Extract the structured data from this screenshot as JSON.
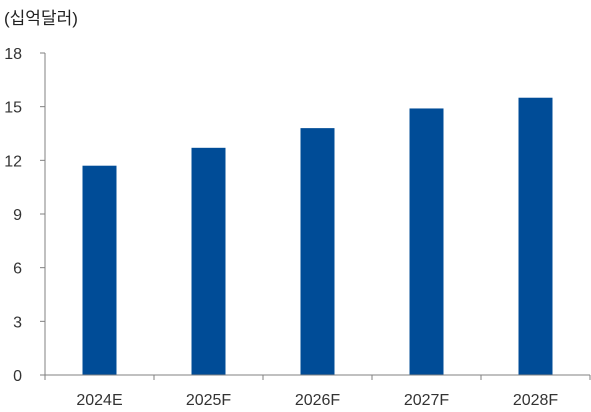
{
  "chart_data": {
    "type": "bar",
    "unit_label": "(십억달러)",
    "categories": [
      "2024E",
      "2025F",
      "2026F",
      "2027F",
      "2028F"
    ],
    "values": [
      11.7,
      12.7,
      13.8,
      14.9,
      15.5
    ],
    "ylim": [
      0,
      18
    ],
    "yticks": [
      0,
      3,
      6,
      9,
      12,
      15,
      18
    ],
    "bar_color": "#004C97",
    "axis_color": "#808080",
    "grid": false,
    "legend": "none"
  }
}
